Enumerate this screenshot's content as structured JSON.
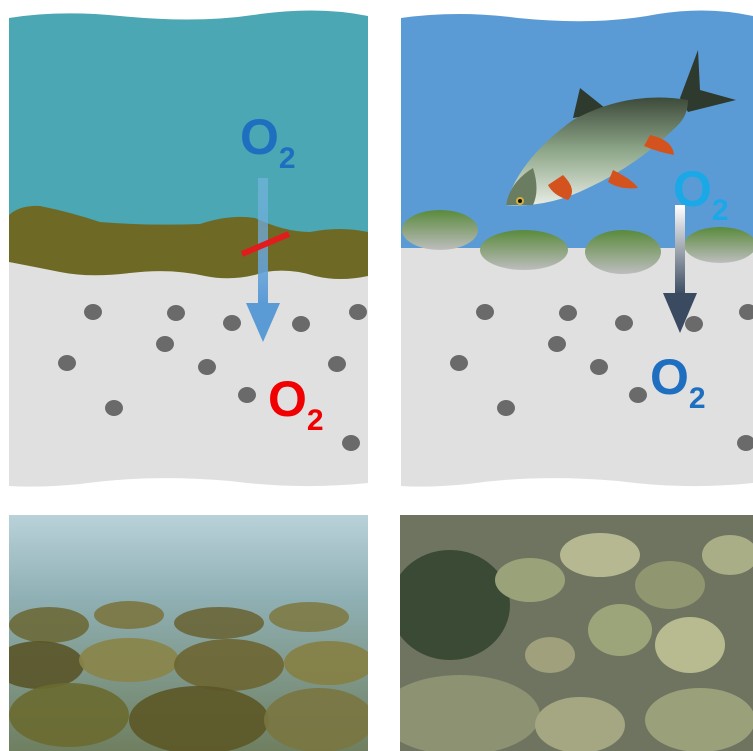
{
  "panels": [
    {
      "id": "clogged-riverbed",
      "labels": [
        {
          "id": "o2-top",
          "main": "O",
          "sub": "2"
        },
        {
          "id": "o2-bottom",
          "main": "O",
          "sub": "2"
        }
      ],
      "photo": {
        "description_icon": "underwater-clogged-stones-photo"
      }
    },
    {
      "id": "clean-riverbed",
      "labels": [
        {
          "id": "o2-top",
          "main": "O",
          "sub": "2"
        },
        {
          "id": "o2-bottom",
          "main": "O",
          "sub": "2"
        }
      ],
      "photo": {
        "description_icon": "underwater-clean-stones-photo"
      }
    }
  ],
  "colors": {
    "left_water": "#4aa7b3",
    "right_water": "#5b9bd5",
    "sediment": "#e0e0e0",
    "clog_layer": "#6e6a26",
    "gravel_dot": "#6a6a6a",
    "o2_blue": "#1f6fc1",
    "o2_light_blue": "#1aa8e6",
    "o2_red": "#f00000",
    "arrow_light_blue": "#5b9bd5",
    "arrow_dark": "#3a4a60",
    "block_bar": "#e11c1c",
    "fish_icon": "fish-icon"
  }
}
